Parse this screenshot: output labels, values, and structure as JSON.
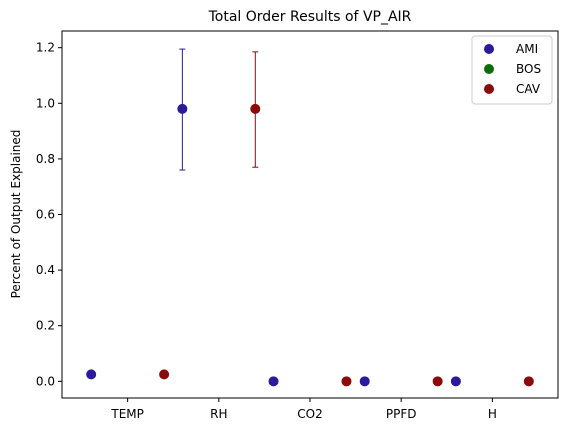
{
  "chart_data": {
    "type": "scatter",
    "title": "Total Order Results of VP_AIR",
    "xlabel": "",
    "ylabel": "Percent of Output Explained",
    "categories": [
      "TEMP",
      "RH",
      "CO2",
      "PPFD",
      "H"
    ],
    "ylim": [
      -0.06,
      1.26
    ],
    "yticks": [
      0.0,
      0.2,
      0.4,
      0.6,
      0.8,
      1.0,
      1.2
    ],
    "ytick_labels": [
      "0.0",
      "0.2",
      "0.4",
      "0.6",
      "0.8",
      "1.0",
      "1.2"
    ],
    "legend_position": "top-right",
    "grid": false,
    "series": [
      {
        "name": "AMI",
        "color": "#2a1b9a",
        "values": [
          0.025,
          0.98,
          0.0,
          0.0,
          0.0
        ],
        "errors": [
          null,
          [
            0.76,
            1.195
          ],
          null,
          null,
          null
        ]
      },
      {
        "name": "BOS",
        "color": "#0b6e0b",
        "values": [
          null,
          null,
          null,
          null,
          null
        ],
        "errors": [
          null,
          null,
          null,
          null,
          null
        ]
      },
      {
        "name": "CAV",
        "color": "#8b0a0a",
        "values": [
          0.025,
          0.98,
          0.0,
          0.0,
          0.0
        ],
        "errors": [
          null,
          [
            0.77,
            1.185
          ],
          null,
          null,
          null
        ]
      }
    ]
  }
}
